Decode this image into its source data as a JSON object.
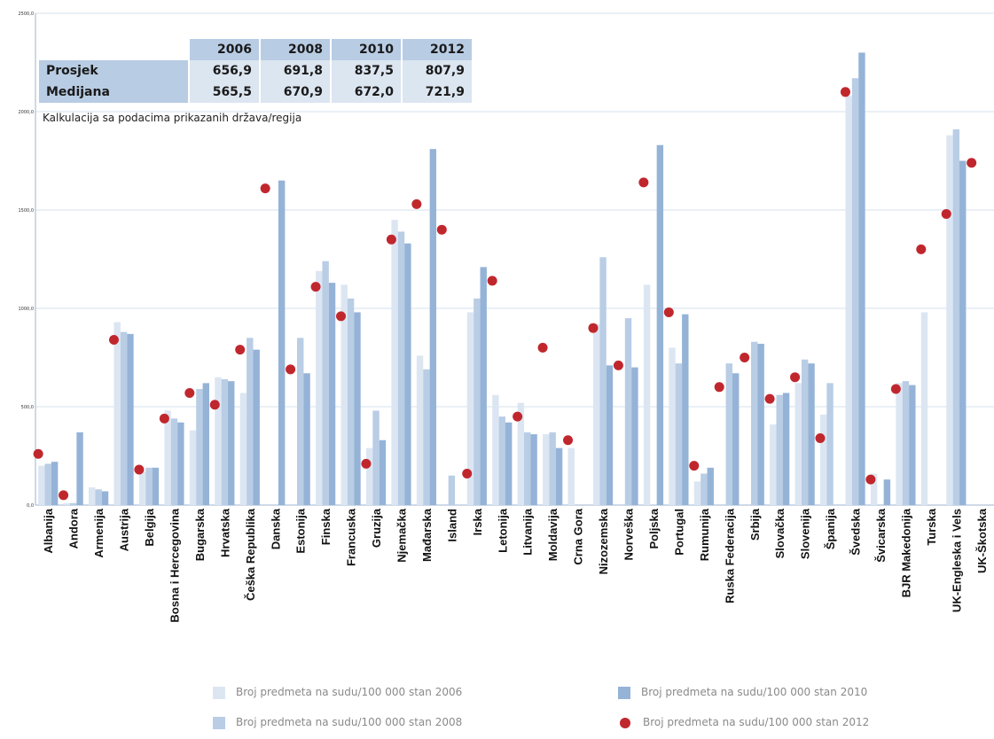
{
  "table": {
    "headers": [
      "2006",
      "2008",
      "2010",
      "2012"
    ],
    "rows": [
      {
        "label": "Prosjek",
        "values": [
          "656,9",
          "691,8",
          "837,5",
          "807,9"
        ]
      },
      {
        "label": "Medijana",
        "values": [
          "565,5",
          "670,9",
          "672,0",
          "721,9"
        ]
      }
    ],
    "note": "Kalkulacija sa podacima prikazanih država/regija"
  },
  "legend": [
    {
      "label": "Broj predmeta na sudu/100 000 stan 2006",
      "color": "#dce6f2"
    },
    {
      "label": "Broj predmeta na sudu/100 000 stan 2008",
      "color": "#b9cde5"
    },
    {
      "label": "Broj predmeta na sudu/100 000 stan 2010",
      "color": "#95b3d7"
    },
    {
      "label": "Broj predmeta na sudu/100 000 stan 2012",
      "color": "#c0272d"
    }
  ],
  "chart_data": {
    "type": "bar",
    "ylim": [
      0,
      2500
    ],
    "yticks": [
      "0,0",
      "500,0",
      "1000,0",
      "1500,0",
      "2000,0",
      "2500,0"
    ],
    "grid": true,
    "categories": [
      "Albanija",
      "Andora",
      "Armenija",
      "Austrija",
      "Belgija",
      "Bosna i Hercegovina",
      "Bugarska",
      "Hrvatska",
      "Češka Republika",
      "Danska",
      "Estonija",
      "Finska",
      "Francuska",
      "Gruzija",
      "Njemačka",
      "Mađarska",
      "Island",
      "Irska",
      "Letonija",
      "Litvanija",
      "Moldavija",
      "Crna Gora",
      "Nizozemska",
      "Norveška",
      "Poljska",
      "Portugal",
      "Rumunija",
      "Ruska Federacija",
      "Srbija",
      "Slovačka",
      "Slovenija",
      "Španija",
      "Švedska",
      "Švicarska",
      "BJR Makedonija",
      "Turska",
      "UK-Engleska i Vels",
      "UK-Škotska"
    ],
    "series": [
      {
        "name": "Broj predmeta na sudu/100 000 stan 2006",
        "color": "#dce6f2",
        "values": [
          200,
          10,
          90,
          930,
          170,
          480,
          380,
          650,
          570,
          0,
          0,
          1190,
          1120,
          290,
          1450,
          760,
          0,
          980,
          560,
          520,
          360,
          290,
          920,
          0,
          1120,
          800,
          120,
          0,
          0,
          410,
          620,
          460,
          2080,
          160,
          620,
          980,
          1880,
          0
        ]
      },
      {
        "name": "Broj predmeta na sudu/100 000 stan 2008",
        "color": "#b9cde5",
        "values": [
          210,
          10,
          80,
          880,
          190,
          440,
          590,
          640,
          850,
          0,
          850,
          1240,
          1050,
          480,
          1390,
          690,
          150,
          1050,
          450,
          370,
          370,
          0,
          1260,
          950,
          0,
          720,
          160,
          720,
          830,
          560,
          740,
          620,
          2170,
          0,
          630,
          0,
          1910,
          0
        ]
      },
      {
        "name": "Broj predmeta na sudu/100 000 stan 2010",
        "color": "#95b3d7",
        "values": [
          220,
          370,
          70,
          870,
          190,
          420,
          620,
          630,
          790,
          1650,
          670,
          1130,
          980,
          330,
          1330,
          1810,
          0,
          1210,
          420,
          360,
          290,
          0,
          710,
          700,
          1830,
          970,
          190,
          670,
          820,
          570,
          720,
          0,
          2300,
          130,
          610,
          0,
          1750,
          0
        ]
      },
      {
        "name": "Broj predmeta na sudu/100 000 stan 2012",
        "color": "#c0272d",
        "type": "scatter",
        "values": [
          260,
          50,
          null,
          840,
          180,
          440,
          570,
          510,
          790,
          1610,
          690,
          1110,
          960,
          210,
          1350,
          1530,
          1400,
          160,
          1140,
          450,
          800,
          330,
          900,
          710,
          1640,
          980,
          200,
          600,
          750,
          540,
          650,
          340,
          2100,
          130,
          590,
          1300,
          1480,
          1740
        ]
      }
    ]
  }
}
